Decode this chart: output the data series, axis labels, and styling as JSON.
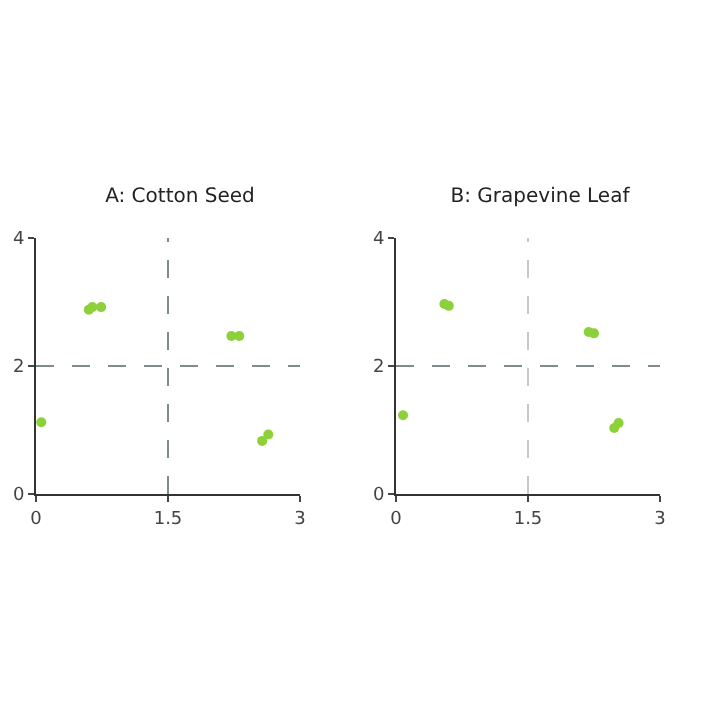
{
  "chart_data": [
    {
      "type": "scatter",
      "title": "A: Cotton Seed",
      "x": [
        0.06,
        0.6,
        0.64,
        0.74,
        2.22,
        2.31,
        2.57,
        2.64
      ],
      "values": [
        1.12,
        2.88,
        2.92,
        2.92,
        2.47,
        2.47,
        0.83,
        0.93
      ],
      "color": "#8cd13a",
      "marker": "circle",
      "xlim": [
        0,
        3
      ],
      "ylim": [
        0,
        4
      ],
      "xticks": [
        0,
        1.5,
        3
      ],
      "yticks": [
        0,
        2,
        4
      ],
      "grid": false,
      "legend": false,
      "ref_lines": [
        {
          "axis": "x",
          "value": 1.5,
          "color": "#7f8c8d",
          "line_style": "dashed"
        },
        {
          "axis": "y",
          "value": 2,
          "color": "#7f8c8d",
          "line_style": "dashed"
        }
      ]
    },
    {
      "type": "scatter",
      "title": "B: Grapevine Leaf",
      "x": [
        0.08,
        0.55,
        0.6,
        2.19,
        2.25,
        2.48,
        2.53
      ],
      "values": [
        1.23,
        2.97,
        2.94,
        2.53,
        2.51,
        1.03,
        1.11
      ],
      "color": "#8cd13a",
      "marker": "circle",
      "xlim": [
        0,
        3
      ],
      "ylim": [
        0,
        4
      ],
      "xticks": [
        0,
        1.5,
        3
      ],
      "yticks": [
        0,
        2,
        4
      ],
      "grid": false,
      "legend": false,
      "ref_lines": [
        {
          "axis": "x",
          "value": 1.5,
          "color": "#c8c8c8",
          "line_style": "dashed"
        },
        {
          "axis": "y",
          "value": 2,
          "color": "#7f8c8d",
          "line_style": "dashed"
        }
      ]
    }
  ]
}
